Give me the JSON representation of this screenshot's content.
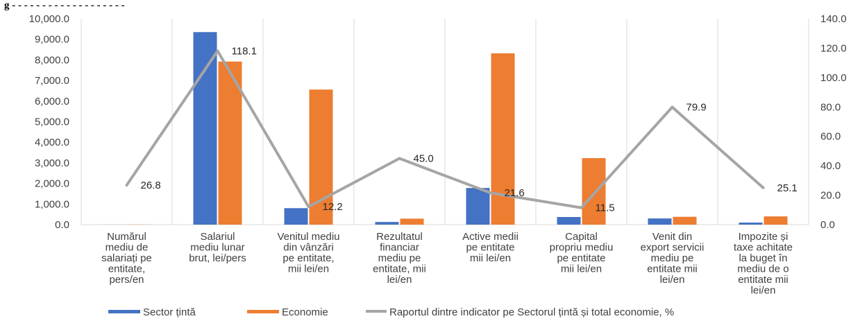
{
  "title": "g          - - - - - - - - - - - - - - - - - - -",
  "chart_data": {
    "type": "bar",
    "title": "",
    "categories": [
      [
        "Numărul",
        "mediu de",
        "salariați pe",
        "entitate,",
        "pers/en"
      ],
      [
        "Salariul",
        "mediu lunar",
        "brut, lei/pers"
      ],
      [
        "Venitul mediu",
        "din vânzări",
        "pe entitate,",
        "mii lei/en"
      ],
      [
        "Rezultatul",
        "financiar",
        "mediu pe",
        "entitate, mii",
        "lei/en"
      ],
      [
        "Active medii",
        "pe entitate",
        "mii lei/en"
      ],
      [
        "Capital",
        "propriu mediu",
        "pe entitate",
        "mii lei/en"
      ],
      [
        "Venit din",
        "export servicii",
        "mediu pe",
        "entitate mii",
        "lei/en"
      ],
      [
        "Impozite și",
        "taxe achitate",
        "la buget în",
        "mediu de o",
        "entitate mii",
        "lei/en"
      ]
    ],
    "series": [
      {
        "name": "Sector țintă",
        "axis": "left",
        "color": "#4472C4",
        "values": [
          2,
          9350,
          800,
          130,
          1780,
          370,
          300,
          100
        ]
      },
      {
        "name": "Economie",
        "axis": "left",
        "color": "#ED7D31",
        "values": [
          7,
          7920,
          6560,
          290,
          8320,
          3230,
          380,
          400
        ]
      },
      {
        "name": "Raportul dintre indicator pe Sectorul țintă și total economie, %",
        "axis": "right",
        "type": "line",
        "color": "#A5A5A5",
        "values": [
          26.8,
          118.1,
          12.2,
          45.0,
          21.6,
          11.5,
          79.9,
          25.1
        ],
        "labels": [
          "26.8",
          "118.1",
          "12.2",
          "45.0",
          "21.6",
          "11.5",
          "79.9",
          "25.1"
        ]
      }
    ],
    "y_left": {
      "min": 0,
      "max": 10000,
      "step": 1000,
      "ticks": [
        "0.0",
        "1,000.0",
        "2,000.0",
        "3,000.0",
        "4,000.0",
        "5,000.0",
        "6,000.0",
        "7,000.0",
        "8,000.0",
        "9,000.0",
        "10,000.0"
      ]
    },
    "y_right": {
      "min": 0,
      "max": 140,
      "step": 20,
      "ticks": [
        "0.0",
        "20.0",
        "40.0",
        "60.0",
        "80.0",
        "100.0",
        "120.0",
        "140.0"
      ]
    },
    "grid": "vertical-category-separators",
    "legend": "bottom"
  }
}
